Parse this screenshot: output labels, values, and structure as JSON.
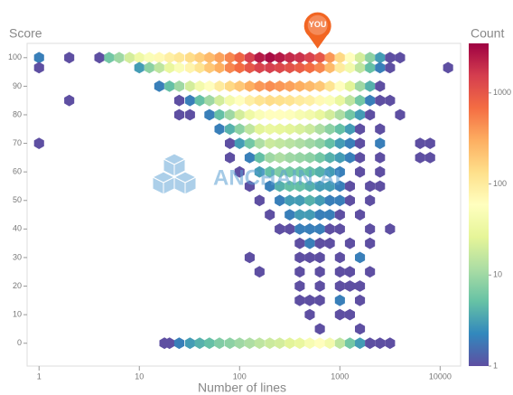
{
  "chart_data": {
    "type": "hexbin",
    "ylabel": "Score",
    "xlabel": "Number of lines",
    "colorbar_label": "Count",
    "watermark": "ANCHAIN.AI",
    "annotation": {
      "text": "YOU",
      "x": 600,
      "y": 100,
      "color": "#f26522"
    },
    "xscale": "log",
    "xlim": [
      0.76,
      16000
    ],
    "xticks": [
      1,
      10,
      100,
      1000,
      10000
    ],
    "ylim": [
      -8,
      105
    ],
    "yticks": [
      0,
      10,
      20,
      30,
      40,
      50,
      60,
      70,
      80,
      90,
      100
    ],
    "clim": [
      1,
      3500
    ],
    "cticks": [
      1,
      10,
      100,
      1000
    ],
    "colormap": [
      "#5e4fa2",
      "#3288bd",
      "#66c2a5",
      "#abdda4",
      "#e6f598",
      "#ffffbf",
      "#fee08b",
      "#fdae61",
      "#f46d43",
      "#d53e4f",
      "#9e0142"
    ],
    "rows": [
      {
        "y": 100,
        "x": [
          1,
          2,
          4,
          5,
          6.3,
          8,
          10,
          12.6,
          15.8,
          20,
          25,
          32,
          40,
          50,
          63,
          80,
          100,
          126,
          158,
          200,
          251,
          316,
          398,
          501,
          631,
          794,
          1000,
          1259,
          1585,
          1995,
          2512,
          3162,
          3981
        ],
        "counts": [
          2,
          1,
          1,
          6,
          10,
          20,
          35,
          50,
          70,
          90,
          110,
          140,
          180,
          250,
          350,
          500,
          800,
          1500,
          2500,
          3000,
          2500,
          2000,
          1800,
          1400,
          1000,
          400,
          150,
          60,
          20,
          8,
          3,
          1,
          1
        ]
      },
      {
        "y": 96.5,
        "x": [
          1,
          10,
          12.6,
          15.8,
          20,
          25,
          32,
          40,
          50,
          63,
          80,
          100,
          126,
          158,
          200,
          251,
          316,
          398,
          501,
          631,
          794,
          1000,
          1259,
          1585,
          1995,
          2512,
          3162,
          12000
        ],
        "counts": [
          1,
          3,
          8,
          15,
          30,
          50,
          80,
          120,
          200,
          300,
          500,
          700,
          1000,
          1400,
          1500,
          1300,
          1100,
          900,
          700,
          500,
          250,
          100,
          40,
          15,
          5,
          2,
          1,
          1
        ]
      },
      {
        "y": 90,
        "x": [
          15.8,
          20,
          25,
          32,
          40,
          50,
          63,
          80,
          100,
          126,
          158,
          200,
          251,
          316,
          398,
          501,
          631,
          794,
          1000,
          1259,
          1585,
          1995,
          2512
        ],
        "counts": [
          2,
          5,
          10,
          20,
          40,
          60,
          100,
          150,
          200,
          300,
          400,
          450,
          400,
          350,
          300,
          250,
          200,
          120,
          60,
          25,
          10,
          4,
          1
        ]
      },
      {
        "y": 85,
        "x": [
          2,
          25,
          32,
          40,
          50,
          63,
          80,
          100,
          126,
          158,
          200,
          251,
          316,
          398,
          501,
          631,
          794,
          1000,
          1259,
          1585,
          1995,
          2512,
          3162
        ],
        "counts": [
          1,
          1,
          2,
          5,
          10,
          20,
          40,
          60,
          90,
          120,
          140,
          130,
          120,
          100,
          90,
          70,
          50,
          30,
          15,
          6,
          2,
          1,
          1
        ]
      },
      {
        "y": 80,
        "x": [
          25,
          32,
          50,
          63,
          80,
          100,
          126,
          158,
          200,
          251,
          316,
          398,
          501,
          631,
          794,
          1000,
          1259,
          1585,
          1995,
          3981
        ],
        "counts": [
          1,
          1,
          2,
          5,
          10,
          20,
          35,
          50,
          60,
          60,
          55,
          45,
          40,
          30,
          20,
          12,
          6,
          3,
          1,
          1
        ]
      },
      {
        "y": 75,
        "x": [
          63,
          80,
          100,
          126,
          158,
          200,
          251,
          316,
          398,
          501,
          631,
          794,
          1000,
          1259,
          1585,
          2512
        ],
        "counts": [
          2,
          4,
          8,
          15,
          25,
          30,
          28,
          25,
          22,
          18,
          12,
          8,
          5,
          3,
          1,
          1
        ]
      },
      {
        "y": 70,
        "x": [
          1,
          80,
          100,
          126,
          158,
          200,
          251,
          316,
          398,
          501,
          631,
          794,
          1000,
          1259,
          1585,
          2512,
          6310,
          7943
        ],
        "counts": [
          1,
          1,
          3,
          6,
          12,
          18,
          16,
          14,
          12,
          10,
          8,
          5,
          3,
          2,
          1,
          2,
          1,
          1
        ]
      },
      {
        "y": 65,
        "x": [
          80,
          126,
          158,
          200,
          251,
          316,
          398,
          501,
          631,
          794,
          1000,
          1259,
          1585,
          2512,
          6310,
          7943
        ],
        "counts": [
          1,
          2,
          5,
          10,
          12,
          10,
          9,
          8,
          6,
          4,
          3,
          2,
          1,
          1,
          1,
          1
        ]
      },
      {
        "y": 60,
        "x": [
          100,
          158,
          200,
          251,
          316,
          398,
          501,
          631,
          794,
          1000,
          1585,
          2512
        ],
        "counts": [
          1,
          3,
          5,
          7,
          6,
          6,
          5,
          4,
          3,
          2,
          1,
          1
        ]
      },
      {
        "y": 55,
        "x": [
          126,
          200,
          251,
          316,
          398,
          501,
          631,
          794,
          1000,
          1259,
          1995,
          2512
        ],
        "counts": [
          1,
          2,
          4,
          5,
          5,
          4,
          3,
          3,
          2,
          1,
          1,
          1
        ]
      },
      {
        "y": 50,
        "x": [
          158,
          251,
          316,
          398,
          501,
          631,
          794,
          1000,
          1259,
          1995
        ],
        "counts": [
          1,
          2,
          3,
          3,
          4,
          3,
          2,
          2,
          1,
          1
        ]
      },
      {
        "y": 45,
        "x": [
          200,
          316,
          398,
          501,
          631,
          794,
          1000,
          1585
        ],
        "counts": [
          1,
          2,
          3,
          3,
          2,
          2,
          1,
          1
        ]
      },
      {
        "y": 40,
        "x": [
          251,
          316,
          398,
          501,
          631,
          794,
          1000,
          1995,
          3162
        ],
        "counts": [
          1,
          1,
          2,
          2,
          2,
          1,
          1,
          1,
          1
        ]
      },
      {
        "y": 35,
        "x": [
          398,
          501,
          631,
          794,
          1259,
          1995
        ],
        "counts": [
          1,
          2,
          1,
          1,
          1,
          1
        ]
      },
      {
        "y": 30,
        "x": [
          126,
          398,
          501,
          631,
          1000,
          1585
        ],
        "counts": [
          1,
          1,
          1,
          1,
          1,
          2
        ]
      },
      {
        "y": 25,
        "x": [
          158,
          398,
          631,
          1000,
          1259,
          1995
        ],
        "counts": [
          1,
          1,
          1,
          1,
          1,
          1
        ]
      },
      {
        "y": 20,
        "x": [
          398,
          631,
          1000,
          1259,
          1585
        ],
        "counts": [
          1,
          1,
          1,
          1,
          1
        ]
      },
      {
        "y": 15,
        "x": [
          398,
          501,
          631,
          1000,
          1585
        ],
        "counts": [
          1,
          1,
          1,
          2,
          1
        ]
      },
      {
        "y": 10,
        "x": [
          501,
          1000,
          1259
        ],
        "counts": [
          1,
          1,
          1
        ]
      },
      {
        "y": 5,
        "x": [
          631,
          1585
        ],
        "counts": [
          1,
          1
        ]
      },
      {
        "y": 0,
        "x": [
          17.8,
          20,
          25,
          32,
          40,
          50,
          63,
          80,
          100,
          126,
          158,
          200,
          251,
          316,
          398,
          501,
          631,
          794,
          1000,
          1259,
          1585,
          1995,
          2512,
          3162
        ],
        "counts": [
          1,
          1,
          2,
          3,
          4,
          5,
          7,
          8,
          10,
          12,
          15,
          18,
          20,
          25,
          30,
          45,
          60,
          40,
          15,
          6,
          3,
          1,
          1,
          1
        ]
      }
    ]
  }
}
